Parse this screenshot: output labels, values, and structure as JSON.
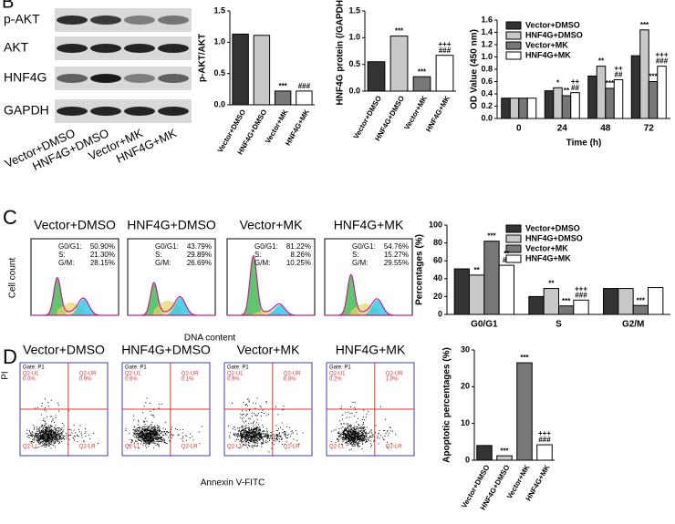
{
  "panel_labels": [
    "B",
    "C",
    "D"
  ],
  "blot": {
    "rows": [
      "p-AKT",
      "AKT",
      "HNF4G",
      "GAPDH"
    ],
    "lanes": [
      "Vector+DMSO",
      "HNF4G+DMSO",
      "Vector+MK",
      "HNF4G+MK"
    ]
  },
  "cell_cycle": {
    "x_label": "DNA content",
    "y_label": "Cell count",
    "samples": [
      {
        "title": "Vector+DMSO",
        "lines": [
          [
            "G0/G1:",
            "50.90%"
          ],
          [
            "S:",
            "21.30%"
          ],
          [
            "G/M:",
            "28.15%"
          ]
        ]
      },
      {
        "title": "HNF4G+DMSO",
        "lines": [
          [
            "G0/G1:",
            "43.79%"
          ],
          [
            "S:",
            "29.89%"
          ],
          [
            "G/M:",
            "26.69%"
          ]
        ]
      },
      {
        "title": "Vector+MK",
        "lines": [
          [
            "G0/G1:",
            "81.22%"
          ],
          [
            "S:",
            "8.26%"
          ],
          [
            "G/M:",
            "10.25%"
          ]
        ]
      },
      {
        "title": "HNF4G+MK",
        "lines": [
          [
            "G0/G1:",
            "54.76%"
          ],
          [
            "S:",
            "15.27%"
          ],
          [
            "G/M:",
            "29.55%"
          ]
        ]
      }
    ]
  },
  "apoptosis": {
    "x_label": "Annexin V-FITC",
    "y_label": "PI",
    "gate": "Gate: P1",
    "samples": [
      {
        "title": "Vector+DMSO",
        "ul": [
          "Q2-UL",
          "0.0%"
        ],
        "ur": [
          "Q2-UR",
          "0.9%"
        ],
        "ll": "Q2-LL",
        "lr": "Q2-LR"
      },
      {
        "title": "HNF4G+DMSO",
        "ul": [
          "Q2-UL",
          "0.6%"
        ],
        "ur": [
          "Q2-UR",
          "0.1%"
        ],
        "ll": "Q2-LL",
        "lr": "Q2-LR"
      },
      {
        "title": "Vector+MK",
        "ul": [
          "Q2-UL",
          "0.9%"
        ],
        "ur": [
          "Q2-UR",
          "6.8%"
        ],
        "ll": "Q2-LL",
        "lr": "Q2-LR"
      },
      {
        "title": "HNF4G+MK",
        "ul": [
          "Q2-UL",
          "0.2%"
        ],
        "ur": [
          "Q2-UR",
          "1.0%"
        ],
        "ll": "Q2-LL",
        "lr": "Q2-LR"
      }
    ]
  },
  "chart_data": [
    {
      "type": "bar",
      "y_label": "p-AKT/AKT",
      "categories": [
        "Vector+DMSO",
        "HNF4G+DMSO",
        "Vector+MK",
        "HNF4G+MK"
      ],
      "values": [
        1.13,
        1.11,
        0.22,
        0.22
      ],
      "colors": [
        "#333333",
        "#c8c8c8",
        "#777777",
        "#ffffff"
      ],
      "annotations": [
        [],
        [],
        [
          "***"
        ],
        [
          "###"
        ]
      ],
      "ylim": [
        0,
        1.5
      ],
      "yticks": [
        {
          "value": 0,
          "label": "0.0"
        },
        0.5,
        {
          "value": 1,
          "label": "1.0"
        },
        1.5
      ]
    },
    {
      "type": "bar",
      "y_label": "HNF4G protein (/GAPDH)",
      "categories": [
        "Vector+DMSO",
        "HNF4G+DMSO",
        "Vector+MK",
        "HNF4G+MK"
      ],
      "values": [
        0.55,
        1.03,
        0.27,
        0.67
      ],
      "colors": [
        "#333333",
        "#c8c8c8",
        "#777777",
        "#ffffff"
      ],
      "annotations": [
        [],
        [
          "***"
        ],
        [
          "***"
        ],
        [
          "+++",
          "###"
        ]
      ],
      "ylim": [
        0,
        1.5
      ],
      "yticks": [
        {
          "value": 0,
          "label": "0.0"
        },
        0.5,
        {
          "value": 1,
          "label": "1.0"
        },
        1.5
      ]
    },
    {
      "type": "bar",
      "y_label": "OD Value (450 nm)",
      "x_label": "Time (h)",
      "categories": [
        "0",
        "24",
        "48",
        "72"
      ],
      "series": [
        {
          "name": "Vector+DMSO",
          "color": "#333333",
          "values": [
            0.33,
            0.45,
            0.69,
            1.02
          ],
          "annotations": [
            [],
            [],
            [],
            []
          ]
        },
        {
          "name": "HNF4G+DMSO",
          "color": "#c8c8c8",
          "values": [
            0.33,
            0.5,
            0.85,
            1.44
          ],
          "annotations": [
            [],
            [
              "*"
            ],
            [
              "**"
            ],
            [
              "***"
            ]
          ]
        },
        {
          "name": "Vector+MK",
          "color": "#777777",
          "values": [
            0.33,
            0.37,
            0.49,
            0.6
          ],
          "annotations": [
            [],
            [
              "**"
            ],
            [
              "***"
            ],
            [
              "***"
            ]
          ]
        },
        {
          "name": "HNF4G+MK",
          "color": "#ffffff",
          "values": [
            0.33,
            0.42,
            0.63,
            0.85
          ],
          "annotations": [
            [],
            [
              "++",
              "##"
            ],
            [
              "++",
              "##"
            ],
            [
              "+++",
              "###"
            ]
          ]
        }
      ],
      "ylim": [
        0,
        1.6
      ],
      "yticks": [
        {
          "value": 0,
          "label": "0.0"
        },
        0.2,
        0.4,
        0.6,
        0.8,
        {
          "value": 1,
          "label": "1.0"
        },
        1.2,
        1.4,
        1.6
      ]
    },
    {
      "type": "bar",
      "y_label": "Percentages (%)",
      "categories": [
        "G0/G1",
        "S",
        "G2/M"
      ],
      "series": [
        {
          "name": "Vector+DMSO",
          "color": "#333333",
          "values": [
            51,
            20,
            29
          ],
          "annotations": [
            [],
            [],
            []
          ]
        },
        {
          "name": "HNF4G+DMSO",
          "color": "#c8c8c8",
          "values": [
            44,
            29,
            29
          ],
          "annotations": [
            [
              "**"
            ],
            [
              "**"
            ],
            []
          ]
        },
        {
          "name": "Vector+MK",
          "color": "#777777",
          "values": [
            82,
            9.5,
            10
          ],
          "annotations": [
            [
              "***"
            ],
            [
              "***"
            ],
            [
              "***"
            ]
          ]
        },
        {
          "name": "HNF4G+MK",
          "color": "#ffffff",
          "values": [
            55,
            16,
            30
          ],
          "annotations": [
            [
              "**",
              "##"
            ],
            [
              "+++",
              "###"
            ],
            []
          ]
        }
      ],
      "ylim": [
        0,
        100
      ],
      "yticks": [
        0,
        20,
        40,
        60,
        80,
        100
      ]
    },
    {
      "type": "bar",
      "y_label": "Apoptotic percentages (%)",
      "categories": [
        "Vector+DMSO",
        "HNF4G+DMSO",
        "Vector+MK",
        "HNF4G+MK"
      ],
      "values": [
        4,
        1.2,
        26.5,
        4.2
      ],
      "colors": [
        "#333333",
        "#c8c8c8",
        "#777777",
        "#ffffff"
      ],
      "annotations": [
        [],
        [
          "***"
        ],
        [
          "***"
        ],
        [
          "+++",
          "###"
        ]
      ],
      "ylim": [
        0,
        30
      ],
      "yticks": [
        0,
        10,
        20,
        30
      ]
    }
  ]
}
